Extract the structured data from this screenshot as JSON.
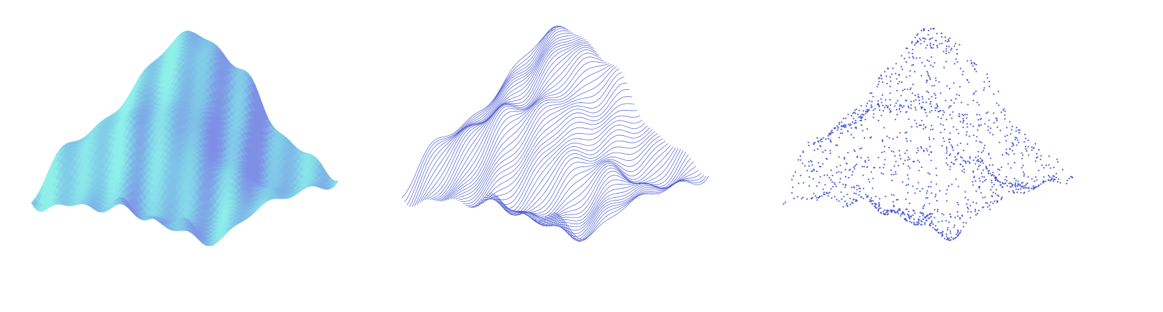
{
  "figure": {
    "panels": [
      {
        "id": "surface",
        "render_mode": "shaded-surface"
      },
      {
        "id": "lines",
        "render_mode": "line-profiles"
      },
      {
        "id": "points",
        "render_mode": "point-cloud"
      }
    ],
    "colors": {
      "background": "#ffffff",
      "surface_low": "#8ff0ea",
      "surface_mid": "#7fc7e8",
      "surface_high": "#7f8fe6",
      "wireframe": "#4d5bd0",
      "points": "#4d5bd0"
    }
  }
}
